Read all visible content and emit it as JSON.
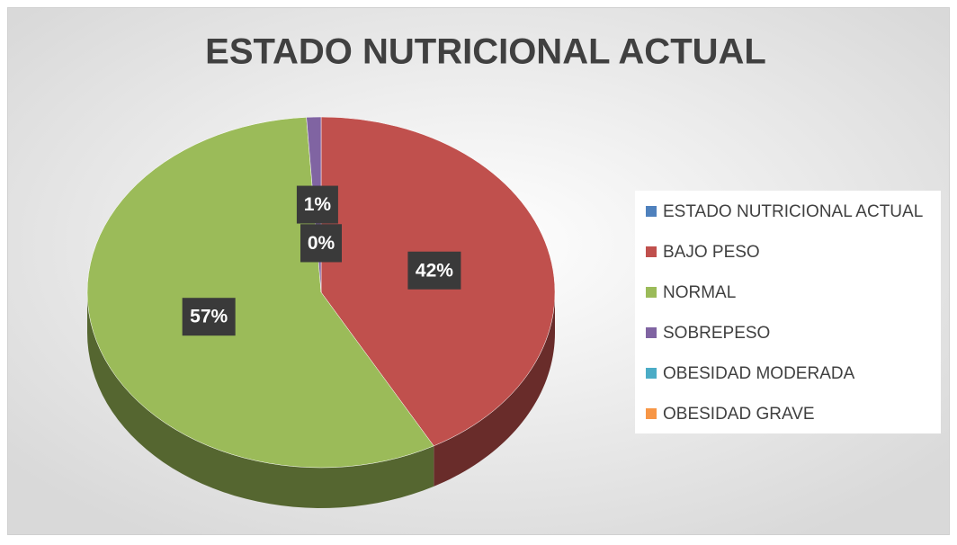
{
  "chart_data": {
    "type": "pie",
    "title": "ESTADO NUTRICIONAL ACTUAL",
    "categories": [
      "ESTADO NUTRICIONAL ACTUAL",
      "BAJO PESO",
      "NORMAL",
      "SOBREPESO",
      "OBESIDAD MODERADA",
      "OBESIDAD GRAVE"
    ],
    "values": [
      0,
      42,
      57,
      1,
      0,
      0
    ],
    "colors": [
      "#4f81bd",
      "#c0504d",
      "#9bbb59",
      "#8064a2",
      "#4bacc6",
      "#f79646"
    ],
    "legend": "right"
  }
}
